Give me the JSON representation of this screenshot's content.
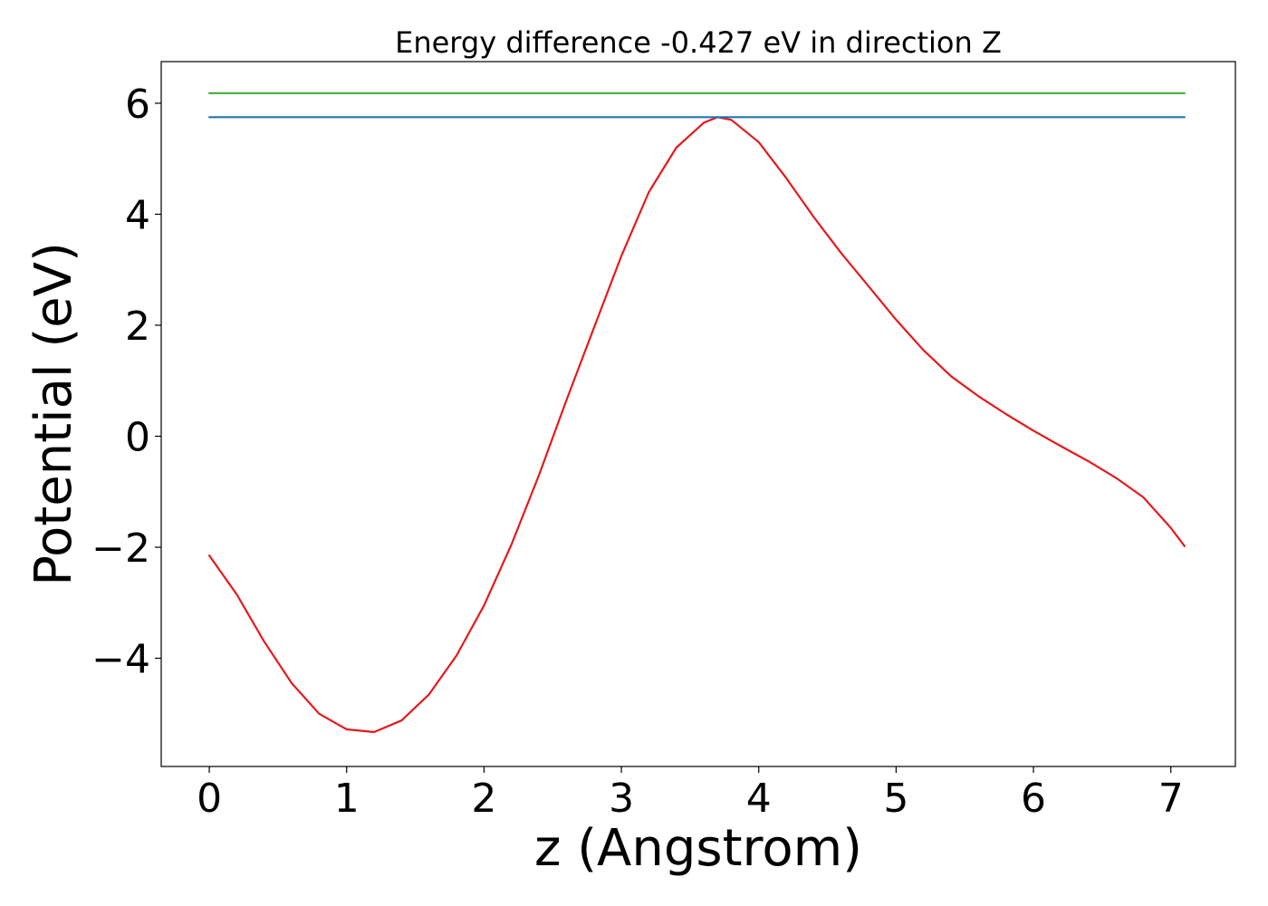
{
  "chart_data": {
    "type": "line",
    "title": "Energy difference -0.427 eV in direction Z",
    "xlabel": "z (Angstrom)",
    "ylabel": "Potential (eV)",
    "xlim": [
      -0.35,
      7.47
    ],
    "ylim": [
      -5.95,
      6.75
    ],
    "xticks": [
      0,
      1,
      2,
      3,
      4,
      5,
      6,
      7
    ],
    "xtick_labels": [
      "0",
      "1",
      "2",
      "3",
      "4",
      "5",
      "6",
      "7"
    ],
    "yticks": [
      -4,
      -2,
      0,
      2,
      4,
      6
    ],
    "ytick_labels": [
      "−4",
      "−2",
      "0",
      "2",
      "4",
      "6"
    ],
    "grid": false,
    "legend": "none",
    "series": [
      {
        "color": "#e41a1c",
        "x": [
          0.0,
          0.2,
          0.4,
          0.6,
          0.8,
          1.0,
          1.2,
          1.4,
          1.6,
          1.8,
          2.0,
          2.2,
          2.4,
          2.6,
          2.8,
          3.0,
          3.2,
          3.4,
          3.6,
          3.7,
          3.8,
          4.0,
          4.2,
          4.4,
          4.6,
          4.8,
          5.0,
          5.2,
          5.4,
          5.6,
          5.8,
          6.0,
          6.2,
          6.4,
          6.6,
          6.8,
          7.0,
          7.1
        ],
        "y": [
          -2.15,
          -2.85,
          -3.7,
          -4.45,
          -5.0,
          -5.28,
          -5.33,
          -5.12,
          -4.65,
          -3.95,
          -3.05,
          -1.95,
          -0.7,
          0.65,
          1.95,
          3.25,
          4.4,
          5.2,
          5.65,
          5.75,
          5.7,
          5.3,
          4.65,
          3.95,
          3.3,
          2.7,
          2.1,
          1.55,
          1.08,
          0.72,
          0.4,
          0.1,
          -0.18,
          -0.45,
          -0.75,
          -1.1,
          -1.65,
          -1.98
        ]
      },
      {
        "color": "#1f77b4",
        "x": [
          0.0,
          7.1
        ],
        "y": [
          5.75,
          5.75
        ]
      },
      {
        "color": "#4daf4a",
        "x": [
          0.0,
          7.1
        ],
        "y": [
          6.18,
          6.18
        ]
      }
    ]
  }
}
